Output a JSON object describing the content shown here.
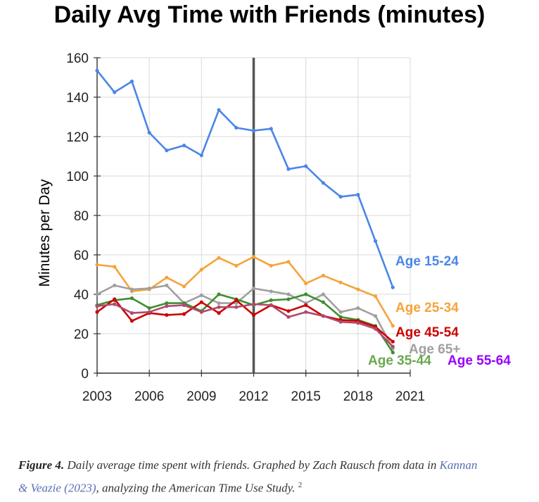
{
  "chart_data": {
    "type": "line",
    "title": "Daily Avg Time with Friends (minutes)",
    "ylabel": "Minutes per Day",
    "xlabel": "",
    "xlim": [
      2003,
      2021
    ],
    "ylim": [
      0,
      160
    ],
    "x_ticks": [
      "2003",
      "2006",
      "2009",
      "2012",
      "2015",
      "2018",
      "2021"
    ],
    "y_ticks": [
      "0",
      "20",
      "40",
      "60",
      "80",
      "100",
      "120",
      "140",
      "160"
    ],
    "grid": true,
    "vertical_marker_x": 2012,
    "x": [
      2003,
      2004,
      2005,
      2006,
      2007,
      2008,
      2009,
      2010,
      2011,
      2012,
      2013,
      2014,
      2015,
      2016,
      2017,
      2018,
      2019,
      2020
    ],
    "series": [
      {
        "name": "Age 15-24",
        "color": "#4a86e8",
        "values": [
          153.5,
          142.5,
          148,
          122,
          113,
          115.5,
          110.5,
          133.5,
          124.5,
          123,
          124,
          103.5,
          105,
          96.5,
          89.5,
          90.5,
          67,
          43.5
        ]
      },
      {
        "name": "Age 25-34",
        "color": "#f6a33a",
        "values": [
          55,
          54,
          41.5,
          42.5,
          48.5,
          44,
          52.5,
          58.5,
          54.5,
          59,
          54.5,
          56.5,
          45.5,
          49.5,
          46,
          42.5,
          39,
          24
        ]
      },
      {
        "name": "Age 65+",
        "color": "#a0a0a0",
        "values": [
          40,
          44.5,
          42.5,
          43,
          44.5,
          35.5,
          39.5,
          35.5,
          35.5,
          43,
          41.5,
          40,
          35.5,
          40,
          31,
          33,
          29,
          12.5
        ]
      },
      {
        "name": "Age 35-44",
        "color": "#3e8e2f",
        "values": [
          34.5,
          37,
          38,
          33,
          35.5,
          35.5,
          31.5,
          40,
          37.5,
          34.5,
          37,
          37.5,
          40,
          36,
          28.5,
          27,
          24,
          10.5
        ]
      },
      {
        "name": "Age 45-54",
        "color": "#cc0000",
        "values": [
          31,
          37.5,
          26.5,
          30.5,
          29.5,
          30,
          36,
          30.5,
          37,
          29.5,
          34.5,
          31.5,
          34.5,
          29,
          27,
          26.5,
          23.5,
          16
        ]
      },
      {
        "name": "Age 55-64",
        "color": "#b04a6e",
        "values": [
          34,
          35,
          30.5,
          31,
          34,
          34.5,
          31,
          33.5,
          33.5,
          35,
          34.5,
          28.5,
          31,
          29,
          26,
          25.5,
          22.5,
          13.5
        ]
      }
    ],
    "series_labels": [
      {
        "text": "Age 15-24",
        "color": "#4a86e8"
      },
      {
        "text": "Age 25-34",
        "color": "#f6a33a"
      },
      {
        "text": "Age 45-54",
        "color": "#cc0000"
      },
      {
        "text": "Age 65+",
        "color": "#a0a0a0"
      },
      {
        "text": "Age 35-44",
        "color": "#6aa84f"
      },
      {
        "text": "Age 55-64",
        "color": "#9900ff"
      }
    ]
  },
  "caption": {
    "figure_label": "Figure 4.",
    "text_before_link1": " Daily average time spent with friends. Graphed by Zach Rausch from data in ",
    "link1": "Kannan",
    "link2": "& Veazie (2023)",
    "text_after_link": ", analyzing the American Time Use Study. ",
    "footnote": "2"
  }
}
